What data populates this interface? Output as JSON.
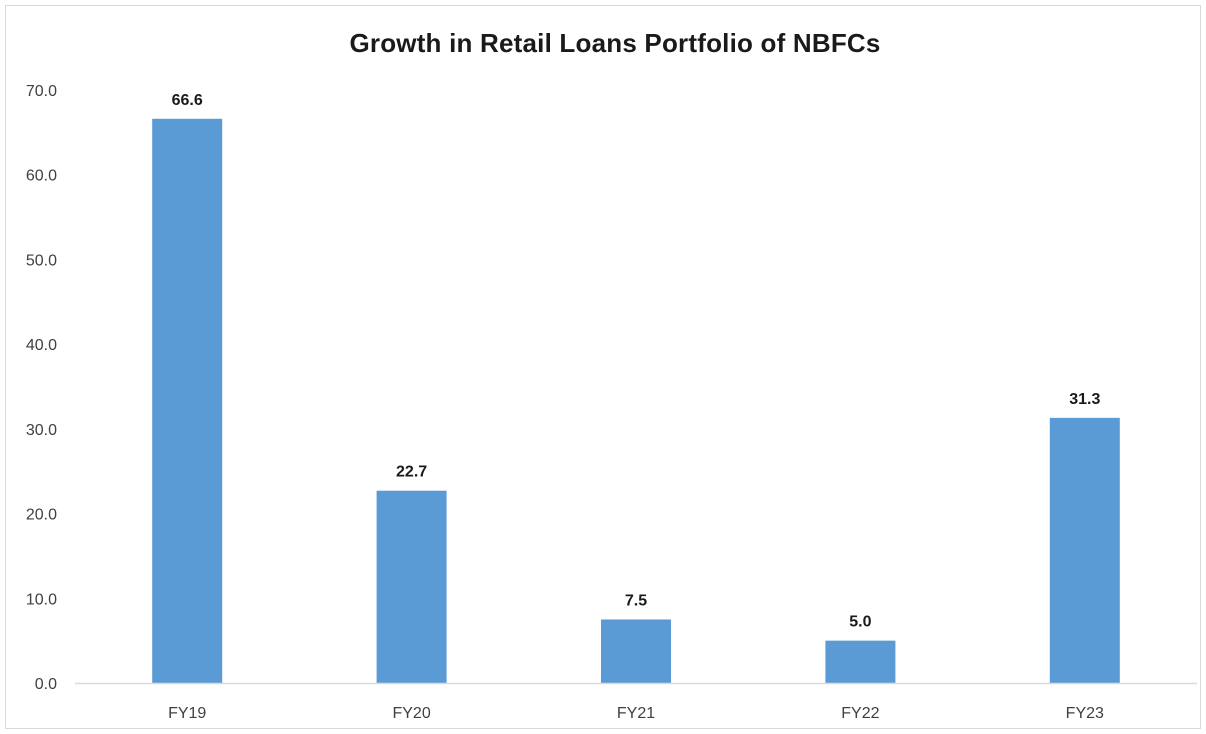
{
  "chart_data": {
    "type": "bar",
    "title": "Growth in Retail Loans Portfolio of NBFCs",
    "categories": [
      "FY19",
      "FY20",
      "FY21",
      "FY22",
      "FY23"
    ],
    "values": [
      66.6,
      22.7,
      7.5,
      5.0,
      31.3
    ],
    "value_labels": [
      "66.6",
      "22.7",
      "7.5",
      "5.0",
      "31.3"
    ],
    "ylim": [
      0,
      70
    ],
    "yticks": [
      "0.0",
      "10.0",
      "20.0",
      "30.0",
      "40.0",
      "50.0",
      "60.0",
      "70.0"
    ],
    "xlabel": "",
    "ylabel": "",
    "grid": false,
    "legend": "none",
    "bar_color": "#5b9bd5",
    "axis_color": "#d9d9d9"
  }
}
